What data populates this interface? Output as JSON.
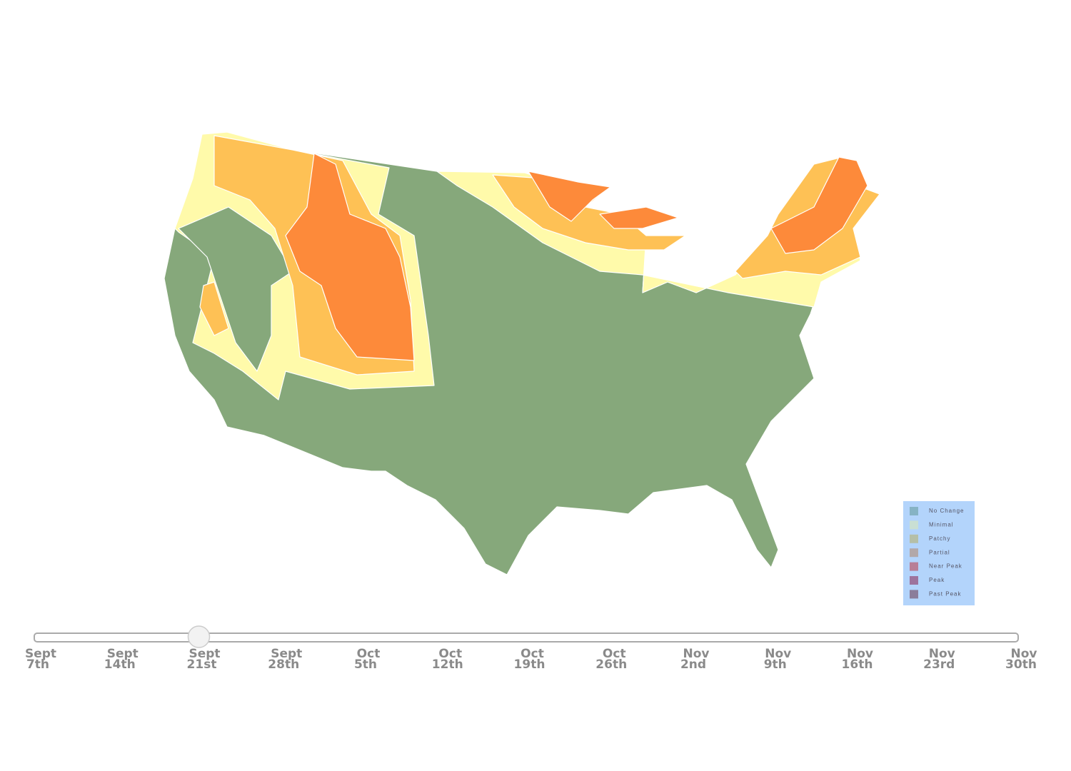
{
  "legend": {
    "items": [
      {
        "label": "No Change",
        "color": "#86b3c4"
      },
      {
        "label": "Minimal",
        "color": "#c9dfd3"
      },
      {
        "label": "Patchy",
        "color": "#b5bfa7"
      },
      {
        "label": "Partial",
        "color": "#b2a8a9"
      },
      {
        "label": "Near Peak",
        "color": "#b87f97"
      },
      {
        "label": "Peak",
        "color": "#9d739d"
      },
      {
        "label": "Past Peak",
        "color": "#8b7d9b"
      }
    ]
  },
  "slider": {
    "selected_index": 2,
    "stops": [
      {
        "month": "Sept",
        "day": "7th"
      },
      {
        "month": "Sept",
        "day": "14th"
      },
      {
        "month": "Sept",
        "day": "21st"
      },
      {
        "month": "Sept",
        "day": "28th"
      },
      {
        "month": "Oct",
        "day": "5th"
      },
      {
        "month": "Oct",
        "day": "12th"
      },
      {
        "month": "Oct",
        "day": "19th"
      },
      {
        "month": "Oct",
        "day": "26th"
      },
      {
        "month": "Nov",
        "day": "2nd"
      },
      {
        "month": "Nov",
        "day": "9th"
      },
      {
        "month": "Nov",
        "day": "16th"
      },
      {
        "month": "Nov",
        "day": "23rd"
      },
      {
        "month": "Nov",
        "day": "30th"
      }
    ]
  }
}
